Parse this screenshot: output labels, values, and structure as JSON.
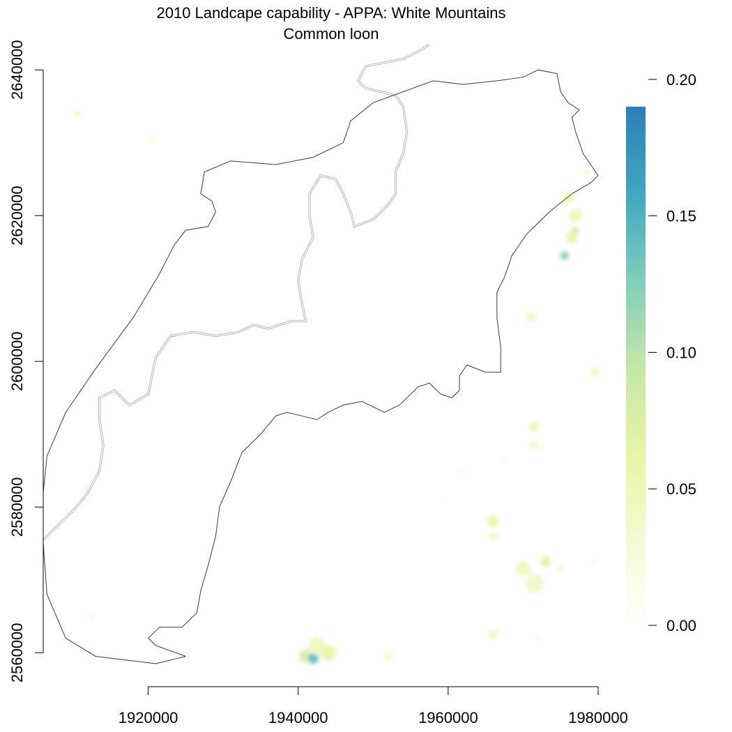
{
  "chart_data": {
    "type": "heatmap",
    "title": "2010 Landcape capability - APPA: White Mountains",
    "subtitle": "Common loon",
    "xlabel": "",
    "ylabel": "",
    "xlim": [
      1906000,
      1980000
    ],
    "ylim": [
      2558500,
      2640500
    ],
    "x_ticks": [
      1920000,
      1940000,
      1960000,
      1980000
    ],
    "x_tick_labels": [
      "1920000",
      "1940000",
      "1960000",
      "1980000"
    ],
    "y_ticks": [
      2560000,
      2580000,
      2600000,
      2620000,
      2640000
    ],
    "y_tick_labels": [
      "2560000",
      "2580000",
      "2600000",
      "2620000",
      "2640000"
    ],
    "colorbar": {
      "min": 0.0,
      "max": 0.19,
      "ticks": [
        0.0,
        0.05,
        0.1,
        0.15,
        0.2
      ],
      "tick_labels": [
        "0.00",
        "0.05",
        "0.10",
        "0.15",
        "0.20"
      ],
      "colors": [
        "#ffffff",
        "#f4fbd2",
        "#e7f5a3",
        "#c4e6a8",
        "#7fcdbb",
        "#41a7c1",
        "#2c7fb8"
      ]
    },
    "grid": false,
    "legend": "right colorbar",
    "boundaries": {
      "appa_unit": [
        [
          1925000,
          2559500
        ],
        [
          1921000,
          2558500
        ],
        [
          1913000,
          2559500
        ],
        [
          1909000,
          2562000
        ],
        [
          1906500,
          2568000
        ],
        [
          1906000,
          2575000
        ],
        [
          1906000,
          2582000
        ],
        [
          1906500,
          2587000
        ],
        [
          1909000,
          2593000
        ],
        [
          1913000,
          2599000
        ],
        [
          1918000,
          2606000
        ],
        [
          1921500,
          2612000
        ],
        [
          1923500,
          2616000
        ],
        [
          1925000,
          2618000
        ],
        [
          1928000,
          2618500
        ],
        [
          1929000,
          2620500
        ],
        [
          1928500,
          2622000
        ],
        [
          1927000,
          2623000
        ],
        [
          1927500,
          2626000
        ],
        [
          1931000,
          2627500
        ],
        [
          1937000,
          2627000
        ],
        [
          1942000,
          2628000
        ],
        [
          1946000,
          2630000
        ],
        [
          1947000,
          2633000
        ],
        [
          1950000,
          2635500
        ],
        [
          1954000,
          2637000
        ],
        [
          1958000,
          2638500
        ],
        [
          1962000,
          2638000
        ],
        [
          1966500,
          2638500
        ],
        [
          1970000,
          2639000
        ],
        [
          1972000,
          2640000
        ],
        [
          1974500,
          2639500
        ],
        [
          1975000,
          2637000
        ],
        [
          1976000,
          2635500
        ],
        [
          1977500,
          2634500
        ],
        [
          1976500,
          2633500
        ],
        [
          1977000,
          2631500
        ],
        [
          1978000,
          2628500
        ],
        [
          1979000,
          2627000
        ],
        [
          1980000,
          2625500
        ],
        [
          1979000,
          2624500
        ],
        [
          1976500,
          2623000
        ],
        [
          1973500,
          2620500
        ],
        [
          1970500,
          2617500
        ],
        [
          1968500,
          2614500
        ],
        [
          1967500,
          2611500
        ],
        [
          1966500,
          2609500
        ],
        [
          1966500,
          2606000
        ],
        [
          1967000,
          2602000
        ],
        [
          1967000,
          2598500
        ],
        [
          1965000,
          2598500
        ],
        [
          1962500,
          2599500
        ],
        [
          1961500,
          2598000
        ],
        [
          1961500,
          2596000
        ],
        [
          1960500,
          2595000
        ],
        [
          1959000,
          2595500
        ],
        [
          1957500,
          2597000
        ],
        [
          1956000,
          2596500
        ],
        [
          1955000,
          2595500
        ],
        [
          1953500,
          2594000
        ],
        [
          1951500,
          2593000
        ],
        [
          1948500,
          2594500
        ],
        [
          1946000,
          2594000
        ],
        [
          1944000,
          2593000
        ],
        [
          1942500,
          2592000
        ],
        [
          1940500,
          2592500
        ],
        [
          1938500,
          2593000
        ],
        [
          1937000,
          2592500
        ],
        [
          1935000,
          2590000
        ],
        [
          1932500,
          2587500
        ],
        [
          1931000,
          2583500
        ],
        [
          1929500,
          2580000
        ],
        [
          1929000,
          2576000
        ],
        [
          1928000,
          2572000
        ],
        [
          1927000,
          2568500
        ],
        [
          1926500,
          2565500
        ],
        [
          1924500,
          2563500
        ],
        [
          1921500,
          2563500
        ],
        [
          1920000,
          2562000
        ],
        [
          1921000,
          2561000
        ],
        [
          1925000,
          2559500
        ]
      ],
      "state_border": [
        [
          1906000,
          2575500
        ],
        [
          1908000,
          2577500
        ],
        [
          1910000,
          2579500
        ],
        [
          1912000,
          2582000
        ],
        [
          1913500,
          2585000
        ],
        [
          1914000,
          2588500
        ],
        [
          1913500,
          2592000
        ],
        [
          1913500,
          2595000
        ],
        [
          1915500,
          2596000
        ],
        [
          1917500,
          2594000
        ],
        [
          1920000,
          2595500
        ],
        [
          1920500,
          2598000
        ],
        [
          1921000,
          2600500
        ],
        [
          1923000,
          2603500
        ],
        [
          1926000,
          2604000
        ],
        [
          1929000,
          2603500
        ],
        [
          1932000,
          2604000
        ],
        [
          1934000,
          2605000
        ],
        [
          1936000,
          2604500
        ],
        [
          1939000,
          2605500
        ],
        [
          1941000,
          2605500
        ],
        [
          1940500,
          2608000
        ],
        [
          1940000,
          2611000
        ],
        [
          1940500,
          2614000
        ],
        [
          1942000,
          2617000
        ],
        [
          1941500,
          2620000
        ],
        [
          1941500,
          2623000
        ],
        [
          1943000,
          2625500
        ],
        [
          1945000,
          2625000
        ],
        [
          1946000,
          2623000
        ],
        [
          1947000,
          2620500
        ],
        [
          1947500,
          2618500
        ],
        [
          1950000,
          2619500
        ],
        [
          1952000,
          2621500
        ],
        [
          1953000,
          2623000
        ],
        [
          1953000,
          2626000
        ],
        [
          1954000,
          2628500
        ],
        [
          1954500,
          2631500
        ],
        [
          1954000,
          2635000
        ],
        [
          1953000,
          2636500
        ],
        [
          1951000,
          2637000
        ],
        [
          1949000,
          2637500
        ],
        [
          1948000,
          2638500
        ],
        [
          1949000,
          2640500
        ],
        [
          1951500,
          2641000
        ],
        [
          1954000,
          2641500
        ],
        [
          1956000,
          2642500
        ],
        [
          1957500,
          2643500
        ]
      ]
    },
    "capability_patches": [
      {
        "x": 1910500,
        "y": 2634000,
        "r": 450,
        "value": 0.04
      },
      {
        "x": 1920500,
        "y": 2630500,
        "r": 500,
        "value": 0.03
      },
      {
        "x": 1976000,
        "y": 2622500,
        "r": 800,
        "value": 0.05
      },
      {
        "x": 1977000,
        "y": 2620000,
        "r": 900,
        "value": 0.05
      },
      {
        "x": 1976500,
        "y": 2617000,
        "r": 800,
        "value": 0.06
      },
      {
        "x": 1975500,
        "y": 2614500,
        "r": 600,
        "value": 0.12
      },
      {
        "x": 1977000,
        "y": 2618000,
        "r": 450,
        "value": 0.09
      },
      {
        "x": 1972500,
        "y": 2619500,
        "r": 350,
        "value": 0.03
      },
      {
        "x": 1978500,
        "y": 2626000,
        "r": 400,
        "value": 0.04
      },
      {
        "x": 1971000,
        "y": 2606000,
        "r": 700,
        "value": 0.04
      },
      {
        "x": 1979500,
        "y": 2598500,
        "r": 700,
        "value": 0.04
      },
      {
        "x": 1971500,
        "y": 2591000,
        "r": 700,
        "value": 0.05
      },
      {
        "x": 1971500,
        "y": 2588500,
        "r": 600,
        "value": 0.04
      },
      {
        "x": 1967500,
        "y": 2586500,
        "r": 400,
        "value": 0.02
      },
      {
        "x": 1966000,
        "y": 2578000,
        "r": 800,
        "value": 0.06
      },
      {
        "x": 1966000,
        "y": 2576000,
        "r": 600,
        "value": 0.04
      },
      {
        "x": 1970000,
        "y": 2571500,
        "r": 1000,
        "value": 0.05
      },
      {
        "x": 1971500,
        "y": 2569500,
        "r": 1300,
        "value": 0.04
      },
      {
        "x": 1973000,
        "y": 2572500,
        "r": 700,
        "value": 0.07
      },
      {
        "x": 1975000,
        "y": 2571500,
        "r": 450,
        "value": 0.03
      },
      {
        "x": 1962000,
        "y": 2585000,
        "r": 400,
        "value": 0.02
      },
      {
        "x": 1959500,
        "y": 2581000,
        "r": 400,
        "value": 0.02
      },
      {
        "x": 1966000,
        "y": 2562500,
        "r": 700,
        "value": 0.04
      },
      {
        "x": 1972000,
        "y": 2562000,
        "r": 350,
        "value": 0.02
      },
      {
        "x": 1979500,
        "y": 2572500,
        "r": 350,
        "value": 0.02
      },
      {
        "x": 1912500,
        "y": 2565000,
        "r": 450,
        "value": 0.03
      },
      {
        "x": 1942500,
        "y": 2561000,
        "r": 1100,
        "value": 0.05
      },
      {
        "x": 1944000,
        "y": 2560000,
        "r": 1100,
        "value": 0.06
      },
      {
        "x": 1941000,
        "y": 2559500,
        "r": 900,
        "value": 0.08
      },
      {
        "x": 1942000,
        "y": 2559200,
        "r": 700,
        "value": 0.14
      },
      {
        "x": 1952000,
        "y": 2559500,
        "r": 600,
        "value": 0.03
      }
    ]
  }
}
